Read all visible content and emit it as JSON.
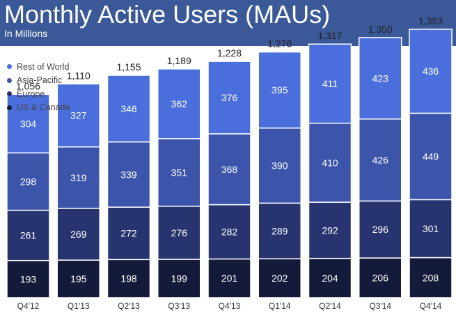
{
  "header": {
    "title": "Monthly Active Users (MAUs)",
    "subtitle": "In Millions"
  },
  "colors": {
    "header_bg": "#3b5998",
    "rest_of_world": "#4a6fdc",
    "asia_pacific": "#3c55ab",
    "europe": "#27346f",
    "us_canada": "#141b3a"
  },
  "chart_data": {
    "type": "bar",
    "stacked": true,
    "title": "Monthly Active Users (MAUs)",
    "subtitle": "In Millions",
    "categories": [
      "Q4'12",
      "Q1'13",
      "Q2'13",
      "Q3'13",
      "Q4'13",
      "Q1'14",
      "Q2'14",
      "Q3'14",
      "Q4'14"
    ],
    "series": [
      {
        "name": "US & Canada",
        "values": [
          193,
          195,
          198,
          199,
          201,
          202,
          204,
          206,
          208
        ]
      },
      {
        "name": "Europe",
        "values": [
          261,
          269,
          272,
          276,
          282,
          289,
          292,
          296,
          301
        ]
      },
      {
        "name": "Asia-Pacific",
        "values": [
          298,
          319,
          339,
          351,
          368,
          390,
          410,
          426,
          449
        ]
      },
      {
        "name": "Rest of World",
        "values": [
          304,
          327,
          346,
          362,
          376,
          395,
          411,
          423,
          436
        ]
      }
    ],
    "totals": [
      "1,056",
      "1,110",
      "1,155",
      "1,189",
      "1,228",
      "1,276",
      "1,317",
      "1,350",
      "1,393"
    ],
    "legend": {
      "position": "top-left",
      "items": [
        "Rest of World",
        "Asia-Pacific",
        "Europe",
        "US & Canada"
      ]
    },
    "grid": false,
    "xlabel": "",
    "ylabel": ""
  }
}
